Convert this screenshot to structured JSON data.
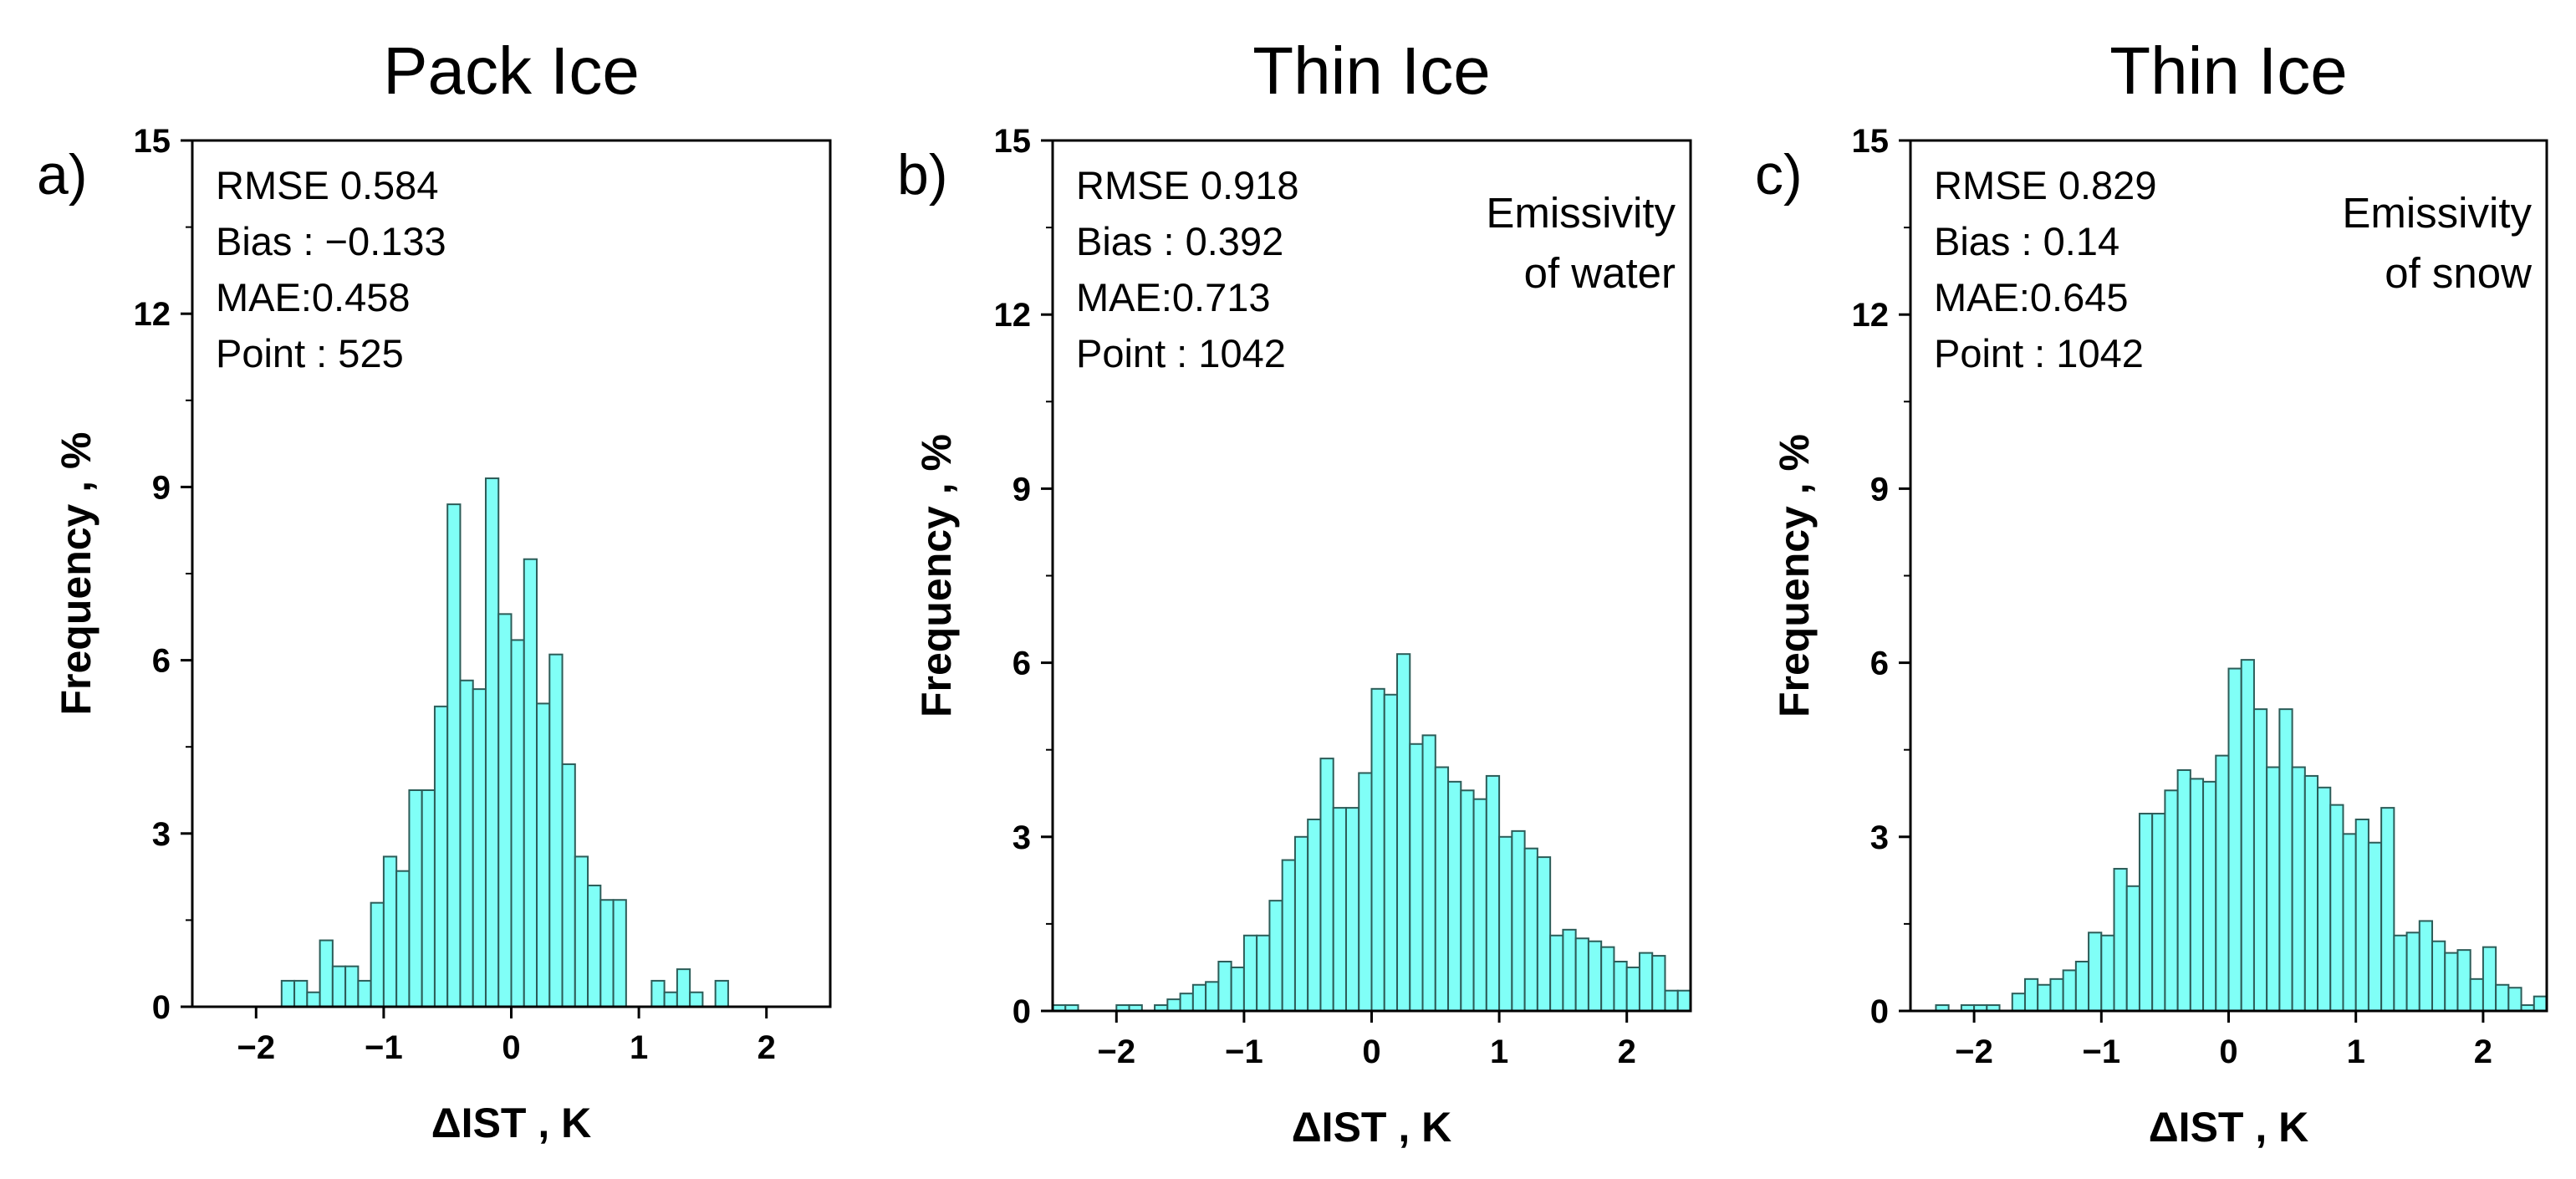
{
  "figure": {
    "background": "#ffffff"
  },
  "chart_data": [
    {
      "type": "bar",
      "title": "Pack Ice",
      "panel_label": "a)",
      "xlabel": "ΔIST , K",
      "ylabel": "Frequency , %",
      "xlim": [
        -2.5,
        2.5
      ],
      "ylim": [
        0,
        15
      ],
      "xticks": [
        -2,
        -1,
        0,
        1,
        2
      ],
      "xtick_labels": [
        "−2",
        "−1",
        "0",
        "1",
        "2"
      ],
      "yticks": [
        0,
        3,
        6,
        9,
        12,
        15
      ],
      "ytick_labels": [
        "0",
        "3",
        "6",
        "9",
        "12",
        "15"
      ],
      "bin_width": 0.1,
      "bin_starts": [
        -1.8,
        -1.7,
        -1.6,
        -1.5,
        -1.4,
        -1.3,
        -1.2,
        -1.1,
        -1.0,
        -0.9,
        -0.8,
        -0.7,
        -0.6,
        -0.5,
        -0.4,
        -0.3,
        -0.2,
        -0.1,
        0.0,
        0.1,
        0.2,
        0.3,
        0.4,
        0.5,
        0.6,
        0.7,
        0.8,
        0.9,
        1.0,
        1.1,
        1.2,
        1.3,
        1.4,
        1.5,
        1.6
      ],
      "values": [
        0.45,
        0.45,
        0.25,
        1.15,
        0.7,
        0.7,
        0.45,
        1.8,
        2.6,
        2.35,
        3.75,
        3.75,
        5.2,
        8.7,
        5.65,
        5.5,
        9.15,
        6.8,
        6.35,
        7.75,
        5.25,
        6.1,
        4.2,
        2.6,
        2.1,
        1.85,
        1.85,
        0.0,
        0.0,
        0.45,
        0.25,
        0.65,
        0.25,
        0.0,
        0.45
      ],
      "bar_color": "#80fff7",
      "edge_color": "#2c5c58",
      "grid": false,
      "stats": [
        "RMSE 0.584",
        "Bias : −0.133",
        "MAE:0.458",
        "Point : 525"
      ],
      "note": []
    },
    {
      "type": "bar",
      "title": "Thin Ice",
      "panel_label": "b)",
      "xlabel": "ΔIST , K",
      "ylabel": "Frequency , %",
      "xlim": [
        -2.5,
        2.5
      ],
      "ylim": [
        0,
        15
      ],
      "xticks": [
        -2,
        -1,
        0,
        1,
        2
      ],
      "xtick_labels": [
        "−2",
        "−1",
        "0",
        "1",
        "2"
      ],
      "yticks": [
        0,
        3,
        6,
        9,
        12,
        15
      ],
      "ytick_labels": [
        "0",
        "3",
        "6",
        "9",
        "12",
        "15"
      ],
      "bin_width": 0.1,
      "bin_starts": [
        -2.5,
        -2.4,
        -2.3,
        -2.2,
        -2.1,
        -2.0,
        -1.9,
        -1.8,
        -1.7,
        -1.6,
        -1.5,
        -1.4,
        -1.3,
        -1.2,
        -1.1,
        -1.0,
        -0.9,
        -0.8,
        -0.7,
        -0.6,
        -0.5,
        -0.4,
        -0.3,
        -0.2,
        -0.1,
        0.0,
        0.1,
        0.2,
        0.3,
        0.4,
        0.5,
        0.6,
        0.7,
        0.8,
        0.9,
        1.0,
        1.1,
        1.2,
        1.3,
        1.4,
        1.5,
        1.6,
        1.7,
        1.8,
        1.9,
        2.0,
        2.1,
        2.2,
        2.3,
        2.4
      ],
      "values": [
        0.1,
        0.1,
        0.0,
        0.0,
        0.0,
        0.1,
        0.1,
        0.0,
        0.1,
        0.2,
        0.3,
        0.45,
        0.5,
        0.85,
        0.75,
        1.3,
        1.3,
        1.9,
        2.6,
        3.0,
        3.3,
        4.35,
        3.5,
        3.5,
        4.1,
        5.55,
        5.45,
        6.15,
        4.6,
        4.75,
        4.2,
        3.95,
        3.8,
        3.65,
        4.05,
        3.0,
        3.1,
        2.8,
        2.65,
        1.3,
        1.4,
        1.25,
        1.2,
        1.1,
        0.85,
        0.75,
        1.0,
        0.95,
        0.35,
        0.35
      ],
      "bar_color": "#80fff7",
      "edge_color": "#2c5c58",
      "grid": false,
      "stats": [
        "RMSE 0.918",
        "Bias : 0.392",
        "MAE:0.713",
        "Point : 1042"
      ],
      "note": [
        "Emissivity",
        "of water"
      ]
    },
    {
      "type": "bar",
      "title": "Thin Ice",
      "panel_label": "c)",
      "xlabel": "ΔIST , K",
      "ylabel": "Frequency , %",
      "xlim": [
        -2.5,
        2.5
      ],
      "ylim": [
        0,
        15
      ],
      "xticks": [
        -2,
        -1,
        0,
        1,
        2
      ],
      "xtick_labels": [
        "−2",
        "−1",
        "0",
        "1",
        "2"
      ],
      "yticks": [
        0,
        3,
        6,
        9,
        12,
        15
      ],
      "ytick_labels": [
        "0",
        "3",
        "6",
        "9",
        "12",
        "15"
      ],
      "bin_width": 0.1,
      "bin_starts": [
        -2.5,
        -2.4,
        -2.3,
        -2.2,
        -2.1,
        -2.0,
        -1.9,
        -1.8,
        -1.7,
        -1.6,
        -1.5,
        -1.4,
        -1.3,
        -1.2,
        -1.1,
        -1.0,
        -0.9,
        -0.8,
        -0.7,
        -0.6,
        -0.5,
        -0.4,
        -0.3,
        -0.2,
        -0.1,
        0.0,
        0.1,
        0.2,
        0.3,
        0.4,
        0.5,
        0.6,
        0.7,
        0.8,
        0.9,
        1.0,
        1.1,
        1.2,
        1.3,
        1.4,
        1.5,
        1.6,
        1.7,
        1.8,
        1.9,
        2.0,
        2.1,
        2.2,
        2.3,
        2.4
      ],
      "values": [
        0.0,
        0.0,
        0.1,
        0.0,
        0.1,
        0.1,
        0.1,
        0.0,
        0.3,
        0.55,
        0.45,
        0.55,
        0.7,
        0.85,
        1.35,
        1.3,
        2.45,
        2.15,
        3.4,
        3.4,
        3.8,
        4.15,
        4.0,
        3.95,
        4.4,
        5.9,
        6.05,
        5.2,
        4.2,
        5.2,
        4.2,
        4.05,
        3.85,
        3.55,
        3.05,
        3.3,
        2.9,
        3.5,
        1.3,
        1.35,
        1.55,
        1.2,
        1.0,
        1.05,
        0.55,
        1.1,
        0.45,
        0.4,
        0.1,
        0.25
      ],
      "bar_color": "#80fff7",
      "edge_color": "#2c5c58",
      "grid": false,
      "stats": [
        "RMSE 0.829",
        "Bias : 0.14",
        "MAE:0.645",
        "Point : 1042"
      ],
      "note": [
        "Emissivity",
        "of snow"
      ]
    }
  ]
}
